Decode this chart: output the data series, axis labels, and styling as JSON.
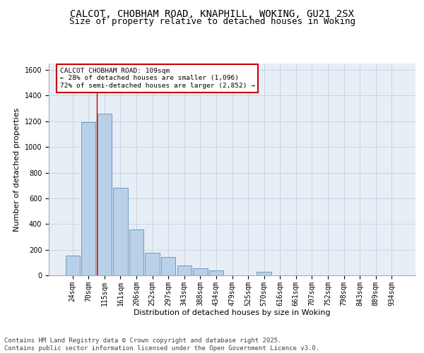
{
  "title_line1": "CALCOT, CHOBHAM ROAD, KNAPHILL, WOKING, GU21 2SX",
  "title_line2": "Size of property relative to detached houses in Woking",
  "xlabel": "Distribution of detached houses by size in Woking",
  "ylabel": "Number of detached properties",
  "categories": [
    "24sqm",
    "70sqm",
    "115sqm",
    "161sqm",
    "206sqm",
    "252sqm",
    "297sqm",
    "343sqm",
    "388sqm",
    "434sqm",
    "479sqm",
    "525sqm",
    "570sqm",
    "616sqm",
    "661sqm",
    "707sqm",
    "752sqm",
    "798sqm",
    "843sqm",
    "889sqm",
    "934sqm"
  ],
  "values": [
    155,
    1195,
    1260,
    680,
    360,
    175,
    145,
    75,
    55,
    40,
    0,
    0,
    30,
    0,
    0,
    0,
    0,
    0,
    0,
    0,
    0
  ],
  "bar_color": "#b8d0e8",
  "bar_edge_color": "#6090b8",
  "grid_color": "#c8d4e4",
  "background_color": "#e8eef6",
  "annotation_text": "CALCOT CHOBHAM ROAD: 109sqm\n← 28% of detached houses are smaller (1,096)\n72% of semi-detached houses are larger (2,852) →",
  "annotation_box_color": "#ffffff",
  "annotation_box_edge": "#cc0000",
  "vline_x": 1.52,
  "vline_color": "#cc0000",
  "ylim": [
    0,
    1650
  ],
  "yticks": [
    0,
    200,
    400,
    600,
    800,
    1000,
    1200,
    1400,
    1600
  ],
  "footer_text": "Contains HM Land Registry data © Crown copyright and database right 2025.\nContains public sector information licensed under the Open Government Licence v3.0.",
  "title_fontsize": 10,
  "subtitle_fontsize": 9,
  "axis_label_fontsize": 8,
  "tick_fontsize": 7,
  "annotation_fontsize": 6.8,
  "footer_fontsize": 6.5
}
